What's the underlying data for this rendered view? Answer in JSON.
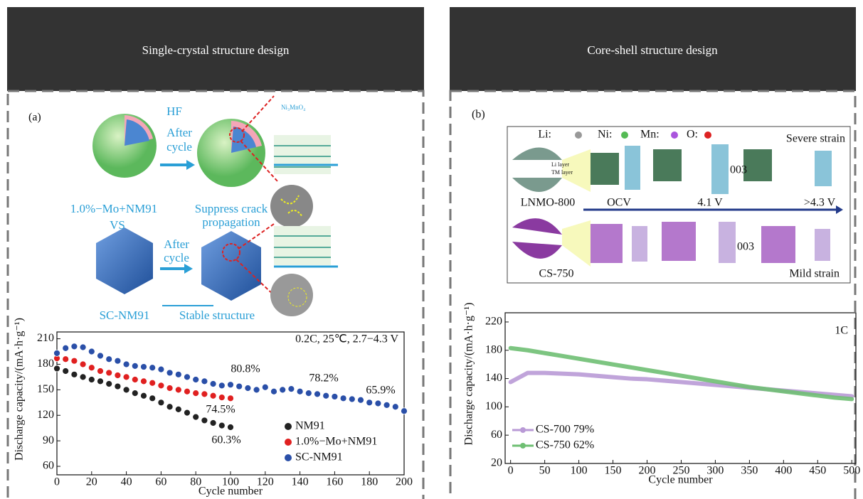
{
  "panels": [
    {
      "header": "Single-crystal structure design",
      "label": "(a)",
      "schematic": [
        "HF",
        "After",
        "cycle",
        "Ni₃MnO₄",
        "1.0%−Mo+NM91",
        "Suppress crack",
        "propagation",
        "VS",
        "After",
        "cycle",
        "SC-NM91",
        "Stable structure"
      ],
      "chart": {
        "type": "scatter",
        "x_label": "Cycle number",
        "y_label": "Discharge capacity/(mA·h·g⁻¹)",
        "xlim": [
          0,
          200
        ],
        "xticks": [
          0,
          20,
          40,
          60,
          80,
          100,
          120,
          140,
          160,
          180,
          200
        ],
        "ylim": [
          50,
          218
        ],
        "yticks": [
          60,
          90,
          120,
          150,
          180,
          210
        ],
        "annotations": [
          "0.2C, 25℃, 2.7−4.3 V",
          "80.8%",
          "78.2%",
          "65.9%",
          "74.5%",
          "60.3%"
        ],
        "series": [
          {
            "name": "NM91",
            "color": "#222222",
            "x": [
              0,
              5,
              10,
              15,
              20,
              25,
              30,
              35,
              40,
              45,
              50,
              55,
              60,
              65,
              70,
              75,
              80,
              85,
              90,
              95,
              100
            ],
            "values": [
              175,
              172,
              168,
              165,
              162,
              160,
              157,
              154,
              150,
              146,
              143,
              140,
              135,
              130,
              127,
              123,
              118,
              114,
              111,
              108,
              106
            ]
          },
          {
            "name": "1.0%−Mo+NM91",
            "color": "#e02020",
            "x": [
              0,
              5,
              10,
              15,
              20,
              25,
              30,
              35,
              40,
              45,
              50,
              55,
              60,
              65,
              70,
              75,
              80,
              85,
              90,
              95,
              100
            ],
            "values": [
              187,
              186,
              184,
              180,
              176,
              172,
              170,
              167,
              165,
              162,
              160,
              158,
              155,
              152,
              150,
              148,
              146,
              145,
              143,
              141,
              140
            ]
          },
          {
            "name": "SC-NM91",
            "color": "#2a4fa8",
            "x": [
              0,
              5,
              10,
              15,
              20,
              25,
              30,
              35,
              40,
              45,
              50,
              55,
              60,
              65,
              70,
              75,
              80,
              85,
              90,
              95,
              100,
              105,
              110,
              115,
              120,
              125,
              130,
              135,
              140,
              145,
              150,
              155,
              160,
              165,
              170,
              175,
              180,
              185,
              190,
              195,
              200
            ],
            "values": [
              193,
              199,
              201,
              200,
              195,
              190,
              186,
              184,
              180,
              178,
              177,
              176,
              174,
              170,
              168,
              165,
              162,
              160,
              157,
              155,
              156,
              154,
              152,
              150,
              153,
              148,
              150,
              151,
              148,
              146,
              145,
              143,
              142,
              140,
              139,
              138,
              135,
              134,
              132,
              130,
              125
            ]
          }
        ]
      }
    },
    {
      "header": "Core-shell structure design",
      "label": "(b)",
      "schematic": [
        "Li:",
        "Ni:",
        "Mn:",
        "O:",
        "Severe strain",
        "Li layer",
        "TM layer",
        "003",
        "LNMO-800",
        "OCV",
        "4.1 V",
        ">4.3 V",
        "003",
        "CS-750",
        "Mild strain"
      ],
      "chart": {
        "type": "line",
        "x_label": "Cycle number",
        "y_label": "Discharge capacity/(mA·h·g⁻¹)",
        "xlim": [
          -8,
          506
        ],
        "xticks": [
          0,
          50,
          100,
          150,
          200,
          250,
          300,
          350,
          400,
          450,
          500
        ],
        "ylim": [
          20,
          233
        ],
        "yticks": [
          20,
          60,
          100,
          140,
          180,
          220
        ],
        "annotations": [
          "1C"
        ],
        "series": [
          {
            "name": "CS-700 79%",
            "color": "#b99ad6",
            "x": [
              0,
              25,
              50,
              75,
              100,
              125,
              150,
              175,
              200,
              225,
              250,
              275,
              300,
              325,
              350,
              375,
              400,
              425,
              450,
              475,
              500
            ],
            "values": [
              135,
              148,
              148,
              147,
              146,
              144,
              142,
              140,
              139,
              137,
              135,
              133,
              131,
              129,
              127,
              125,
              123,
              121,
              119,
              117,
              115
            ]
          },
          {
            "name": "CS-750 62%",
            "color": "#6fbf73",
            "x": [
              0,
              25,
              50,
              75,
              100,
              125,
              150,
              175,
              200,
              225,
              250,
              275,
              300,
              325,
              350,
              375,
              400,
              425,
              450,
              475,
              500
            ],
            "values": [
              183,
              180,
              176,
              172,
              168,
              164,
              160,
              156,
              152,
              148,
              144,
              140,
              136,
              132,
              128,
              125,
              122,
              119,
              116,
              113,
              111
            ]
          }
        ]
      }
    }
  ]
}
